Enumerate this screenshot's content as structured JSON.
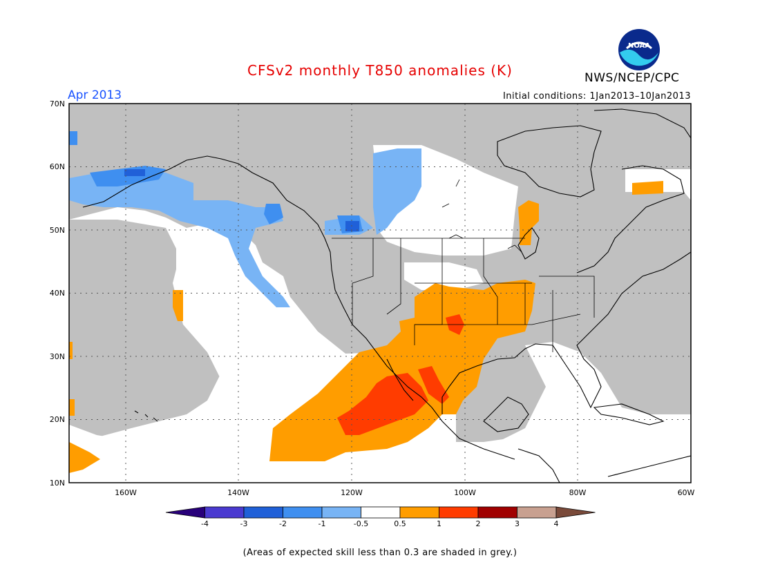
{
  "title": "CFSv2 monthly T850 anomalies (K)",
  "agency": "NWS/NCEP/CPC",
  "logo_text": "NOAA",
  "month_label": "Apr 2013",
  "initial_conditions": "Initial conditions: 1Jan2013–10Jan2013",
  "caption": "(Areas of expected skill less than 0.3 are shaded in grey.)",
  "map": {
    "lon_range": [
      -170,
      -60
    ],
    "lat_range": [
      10,
      70
    ],
    "lat_ticks": [
      "10N",
      "20N",
      "30N",
      "40N",
      "50N",
      "60N",
      "70N"
    ],
    "lon_ticks": [
      "160W",
      "140W",
      "120W",
      "100W",
      "80W",
      "60W"
    ],
    "colors": {
      "grey_low_skill": "#c0c0c0",
      "lt_blue": "#78b4f5",
      "blue": "#3f8ff0",
      "dk_blue": "#2060d8",
      "orange": "#ff9d00",
      "red_orange": "#ff3c00",
      "coast": "#000000"
    }
  },
  "colorbar": {
    "colors": [
      "#28007a",
      "#4a3ad0",
      "#2060d8",
      "#3f8ff0",
      "#78b4f5",
      "#ffffff",
      "#ff9d00",
      "#ff3c00",
      "#a00000",
      "#c8a090",
      "#7a4a3a"
    ],
    "labels": [
      "-4",
      "-3",
      "-2",
      "-1",
      "-0.5",
      "0.5",
      "1",
      "2",
      "3",
      "4"
    ]
  }
}
